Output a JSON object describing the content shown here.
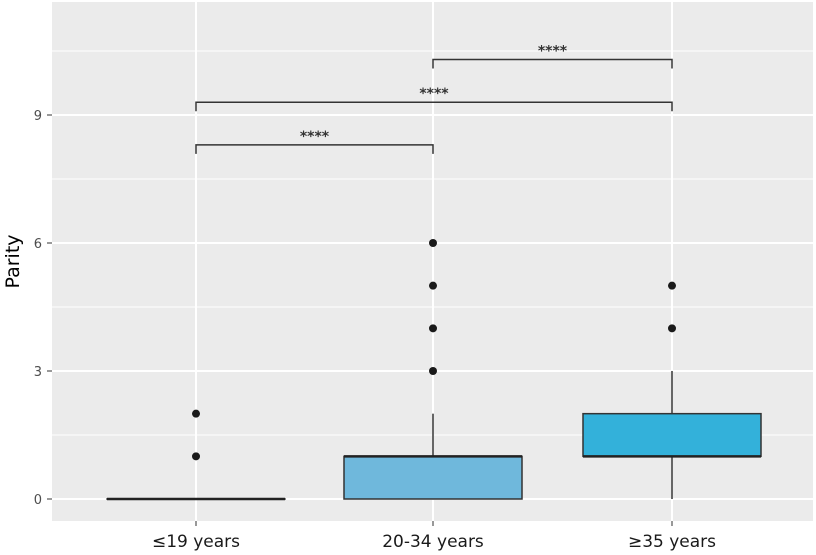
{
  "chart_data": {
    "type": "box",
    "title": "",
    "xlabel": "",
    "ylabel": "Parity",
    "ylim": [
      -0.55,
      11.5
    ],
    "yticks": [
      0,
      3,
      6,
      9
    ],
    "grid": true,
    "background": "#EBEBEB",
    "categories": [
      "≤19 years",
      "20-34 years",
      "≥35 years"
    ],
    "boxes": [
      {
        "category": "≤19 years",
        "min": 0,
        "q1": 0,
        "median": 0,
        "q3": 0,
        "max": 0,
        "outliers": [
          1,
          2
        ],
        "fill": "#A6D1E8"
      },
      {
        "category": "20-34 years",
        "min": 0,
        "q1": 0,
        "median": 1,
        "q3": 1,
        "max": 2,
        "outliers": [
          3,
          4,
          5,
          6
        ],
        "fill": "#6FB8DC"
      },
      {
        "category": "≥35 years",
        "min": 0,
        "q1": 1,
        "median": 1,
        "q3": 2,
        "max": 3,
        "outliers": [
          4,
          5
        ],
        "fill": "#33B1DA"
      }
    ],
    "significance": [
      {
        "from": 0,
        "to": 1,
        "y": 8.3,
        "label": "****"
      },
      {
        "from": 0,
        "to": 2,
        "y": 9.3,
        "label": "****"
      },
      {
        "from": 1,
        "to": 2,
        "y": 10.3,
        "label": "****"
      }
    ]
  }
}
